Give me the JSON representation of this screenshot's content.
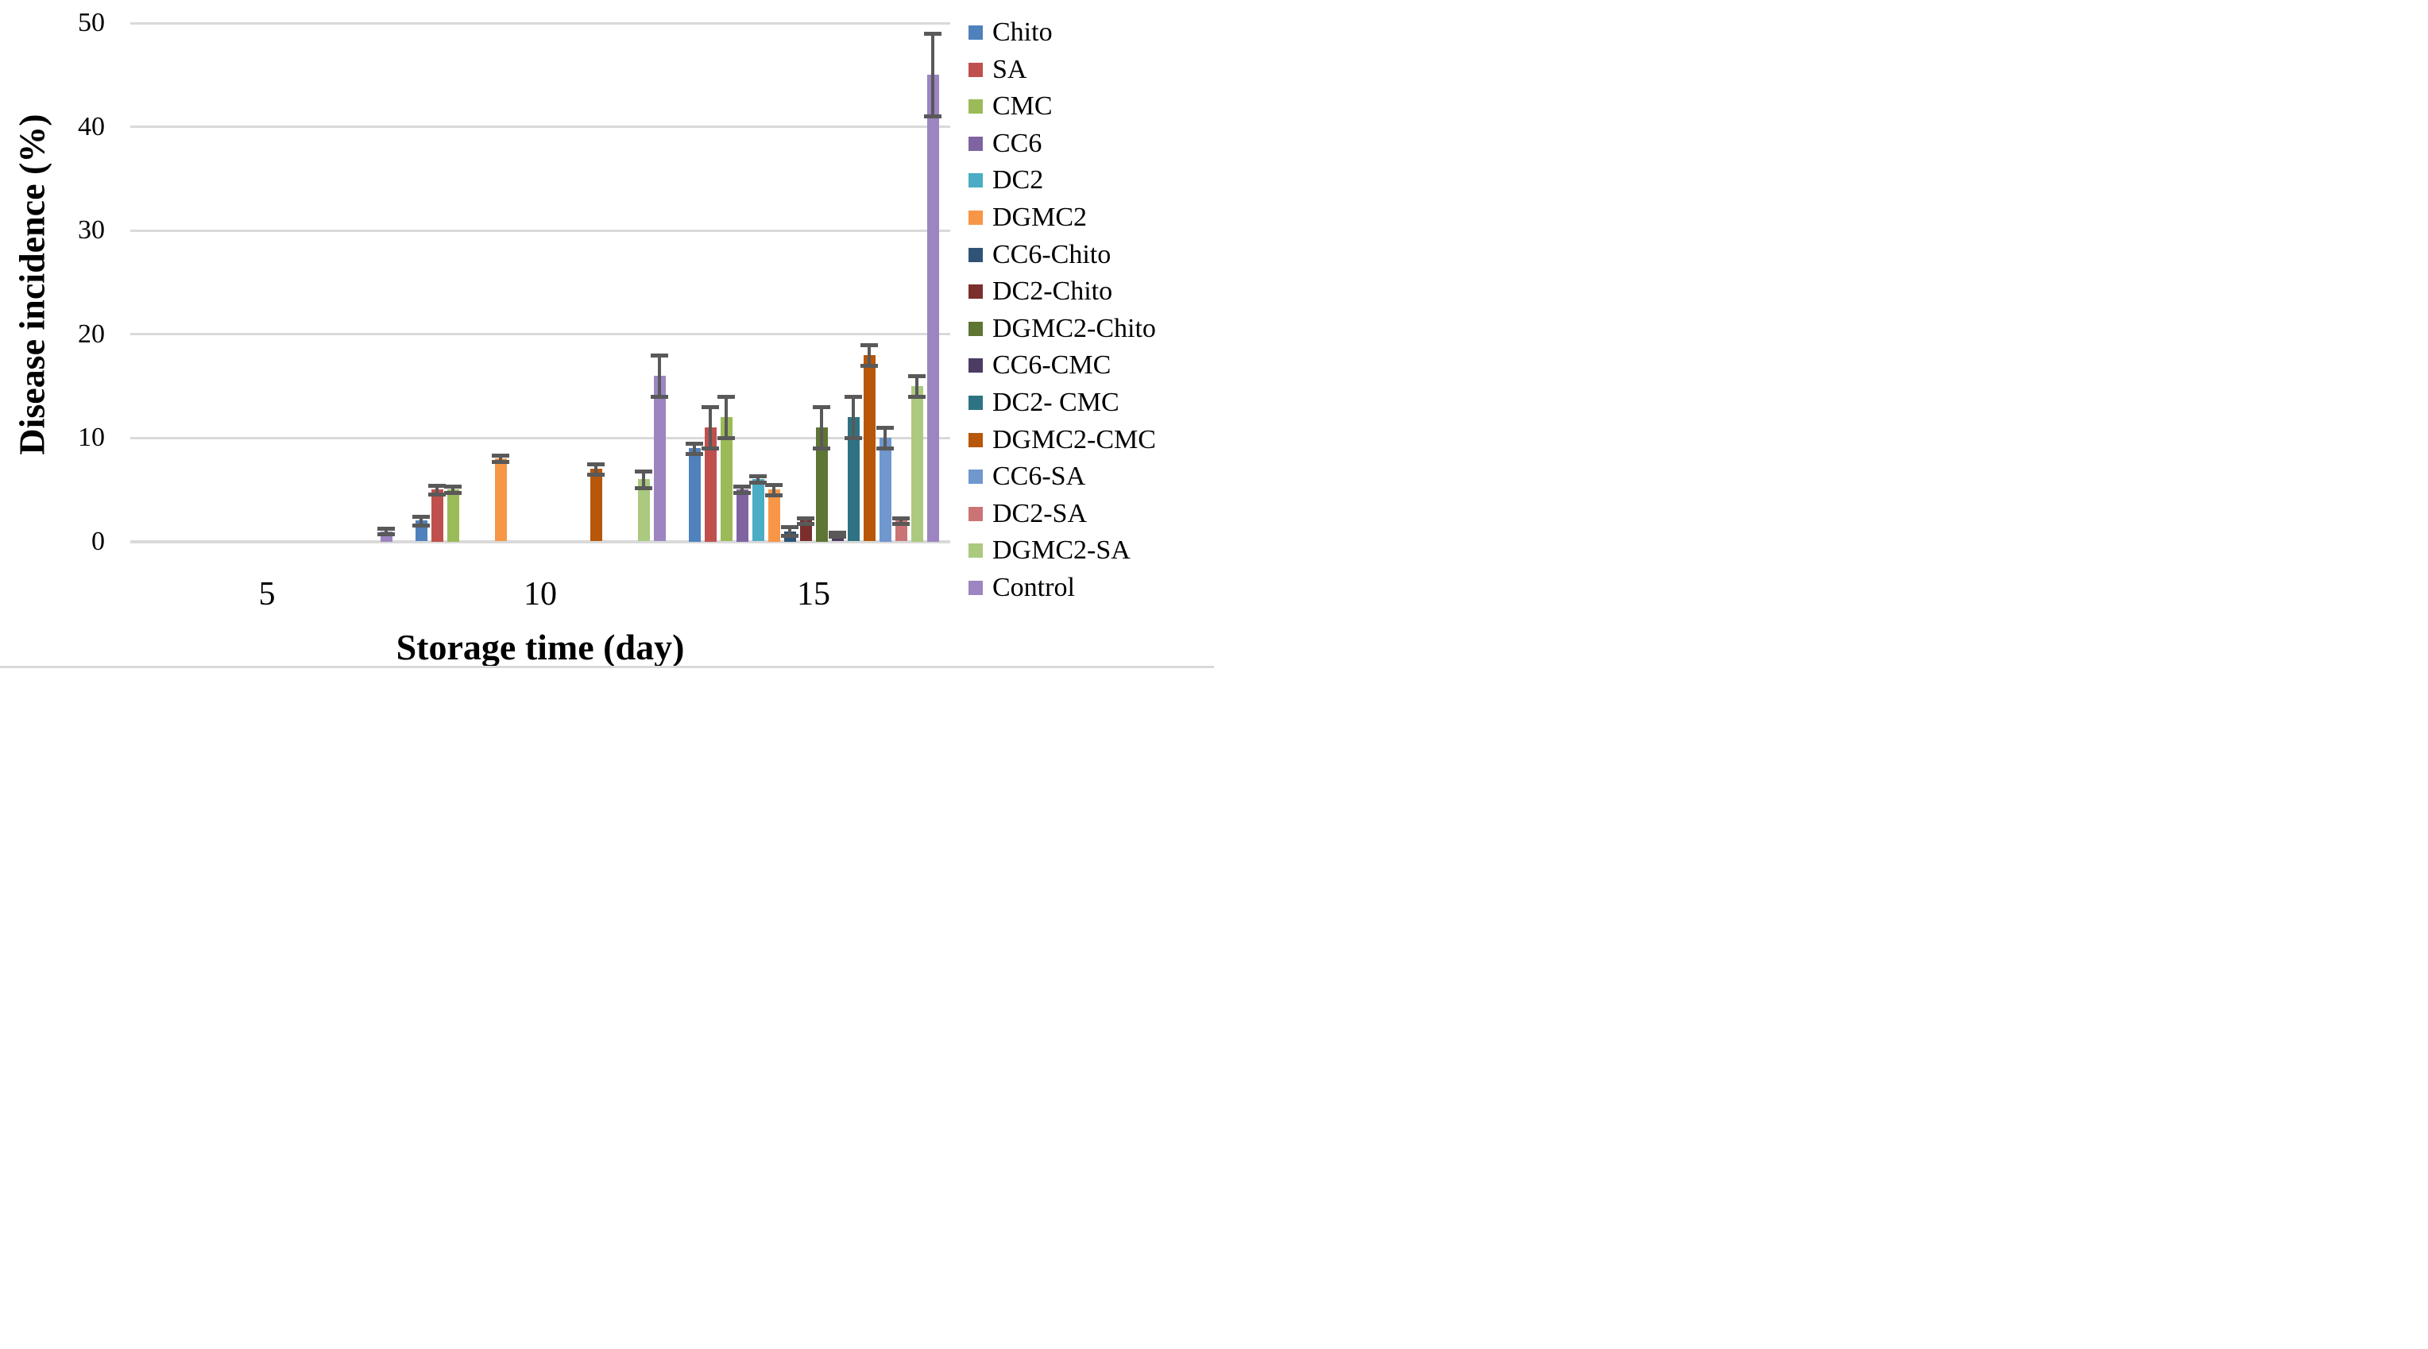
{
  "figure": {
    "background": "#FFFFFF",
    "bottom_border_color": "#D9D9D9"
  },
  "chart_data": {
    "type": "bar",
    "title": "",
    "xlabel": "Storage time (day)",
    "ylabel": "Disease incidence (%)",
    "categories": [
      "5",
      "10",
      "15"
    ],
    "ylim": [
      0,
      50
    ],
    "yticks": [
      0,
      10,
      20,
      30,
      40,
      50
    ],
    "grid": "horizontal gridlines",
    "legend_position": "right",
    "gridline_color": "#D9D9D9",
    "error_bar_color": "#595959",
    "series": [
      {
        "name": "Chito",
        "color": "#4F81BD",
        "values": [
          0,
          2,
          9
        ],
        "errors": [
          0,
          0.4,
          0.5
        ]
      },
      {
        "name": "SA",
        "color": "#C0504D",
        "values": [
          0,
          5,
          11
        ],
        "errors": [
          0,
          0.4,
          2
        ]
      },
      {
        "name": "CMC",
        "color": "#9BBB59",
        "values": [
          0,
          5,
          12
        ],
        "errors": [
          0,
          0.3,
          2
        ]
      },
      {
        "name": "CC6",
        "color": "#8064A2",
        "values": [
          0,
          0,
          5
        ],
        "errors": [
          0,
          0,
          0.3
        ]
      },
      {
        "name": "DC2",
        "color": "#4BACC6",
        "values": [
          0,
          0,
          6
        ],
        "errors": [
          0,
          0,
          0.3
        ]
      },
      {
        "name": "DGMC2",
        "color": "#F79646",
        "values": [
          0,
          8,
          5
        ],
        "errors": [
          0,
          0.3,
          0.5
        ]
      },
      {
        "name": "CC6-Chito",
        "color": "#2F5376",
        "values": [
          0,
          0,
          1
        ],
        "errors": [
          0,
          0,
          0.4
        ]
      },
      {
        "name": "DC2-Chito",
        "color": "#7A2F2C",
        "values": [
          0,
          0,
          2
        ],
        "errors": [
          0,
          0,
          0.3
        ]
      },
      {
        "name": "DGMC2-Chito",
        "color": "#5F7533",
        "values": [
          0,
          0,
          11
        ],
        "errors": [
          0,
          0,
          2
        ]
      },
      {
        "name": "CC6-CMC",
        "color": "#4C3C63",
        "values": [
          0,
          0,
          0.7
        ],
        "errors": [
          0,
          0,
          0.2
        ]
      },
      {
        "name": "DC2- CMC",
        "color": "#2E7384",
        "values": [
          0,
          0,
          12
        ],
        "errors": [
          0,
          0,
          2
        ]
      },
      {
        "name": "DGMC2-CMC",
        "color": "#B85609",
        "values": [
          0,
          7,
          18
        ],
        "errors": [
          0,
          0.5,
          1
        ]
      },
      {
        "name": "CC6-SA",
        "color": "#7097CE",
        "values": [
          0,
          0,
          10
        ],
        "errors": [
          0,
          0,
          1
        ]
      },
      {
        "name": "DC2-SA",
        "color": "#CB7476",
        "values": [
          0,
          0,
          2
        ],
        "errors": [
          0,
          0,
          0.3
        ]
      },
      {
        "name": "DGMC2-SA",
        "color": "#ABC97F",
        "values": [
          0,
          6,
          15
        ],
        "errors": [
          0,
          0.8,
          1
        ]
      },
      {
        "name": "Control",
        "color": "#9C85C1",
        "values": [
          1,
          16,
          45
        ],
        "errors": [
          0.3,
          2,
          4
        ]
      }
    ]
  }
}
